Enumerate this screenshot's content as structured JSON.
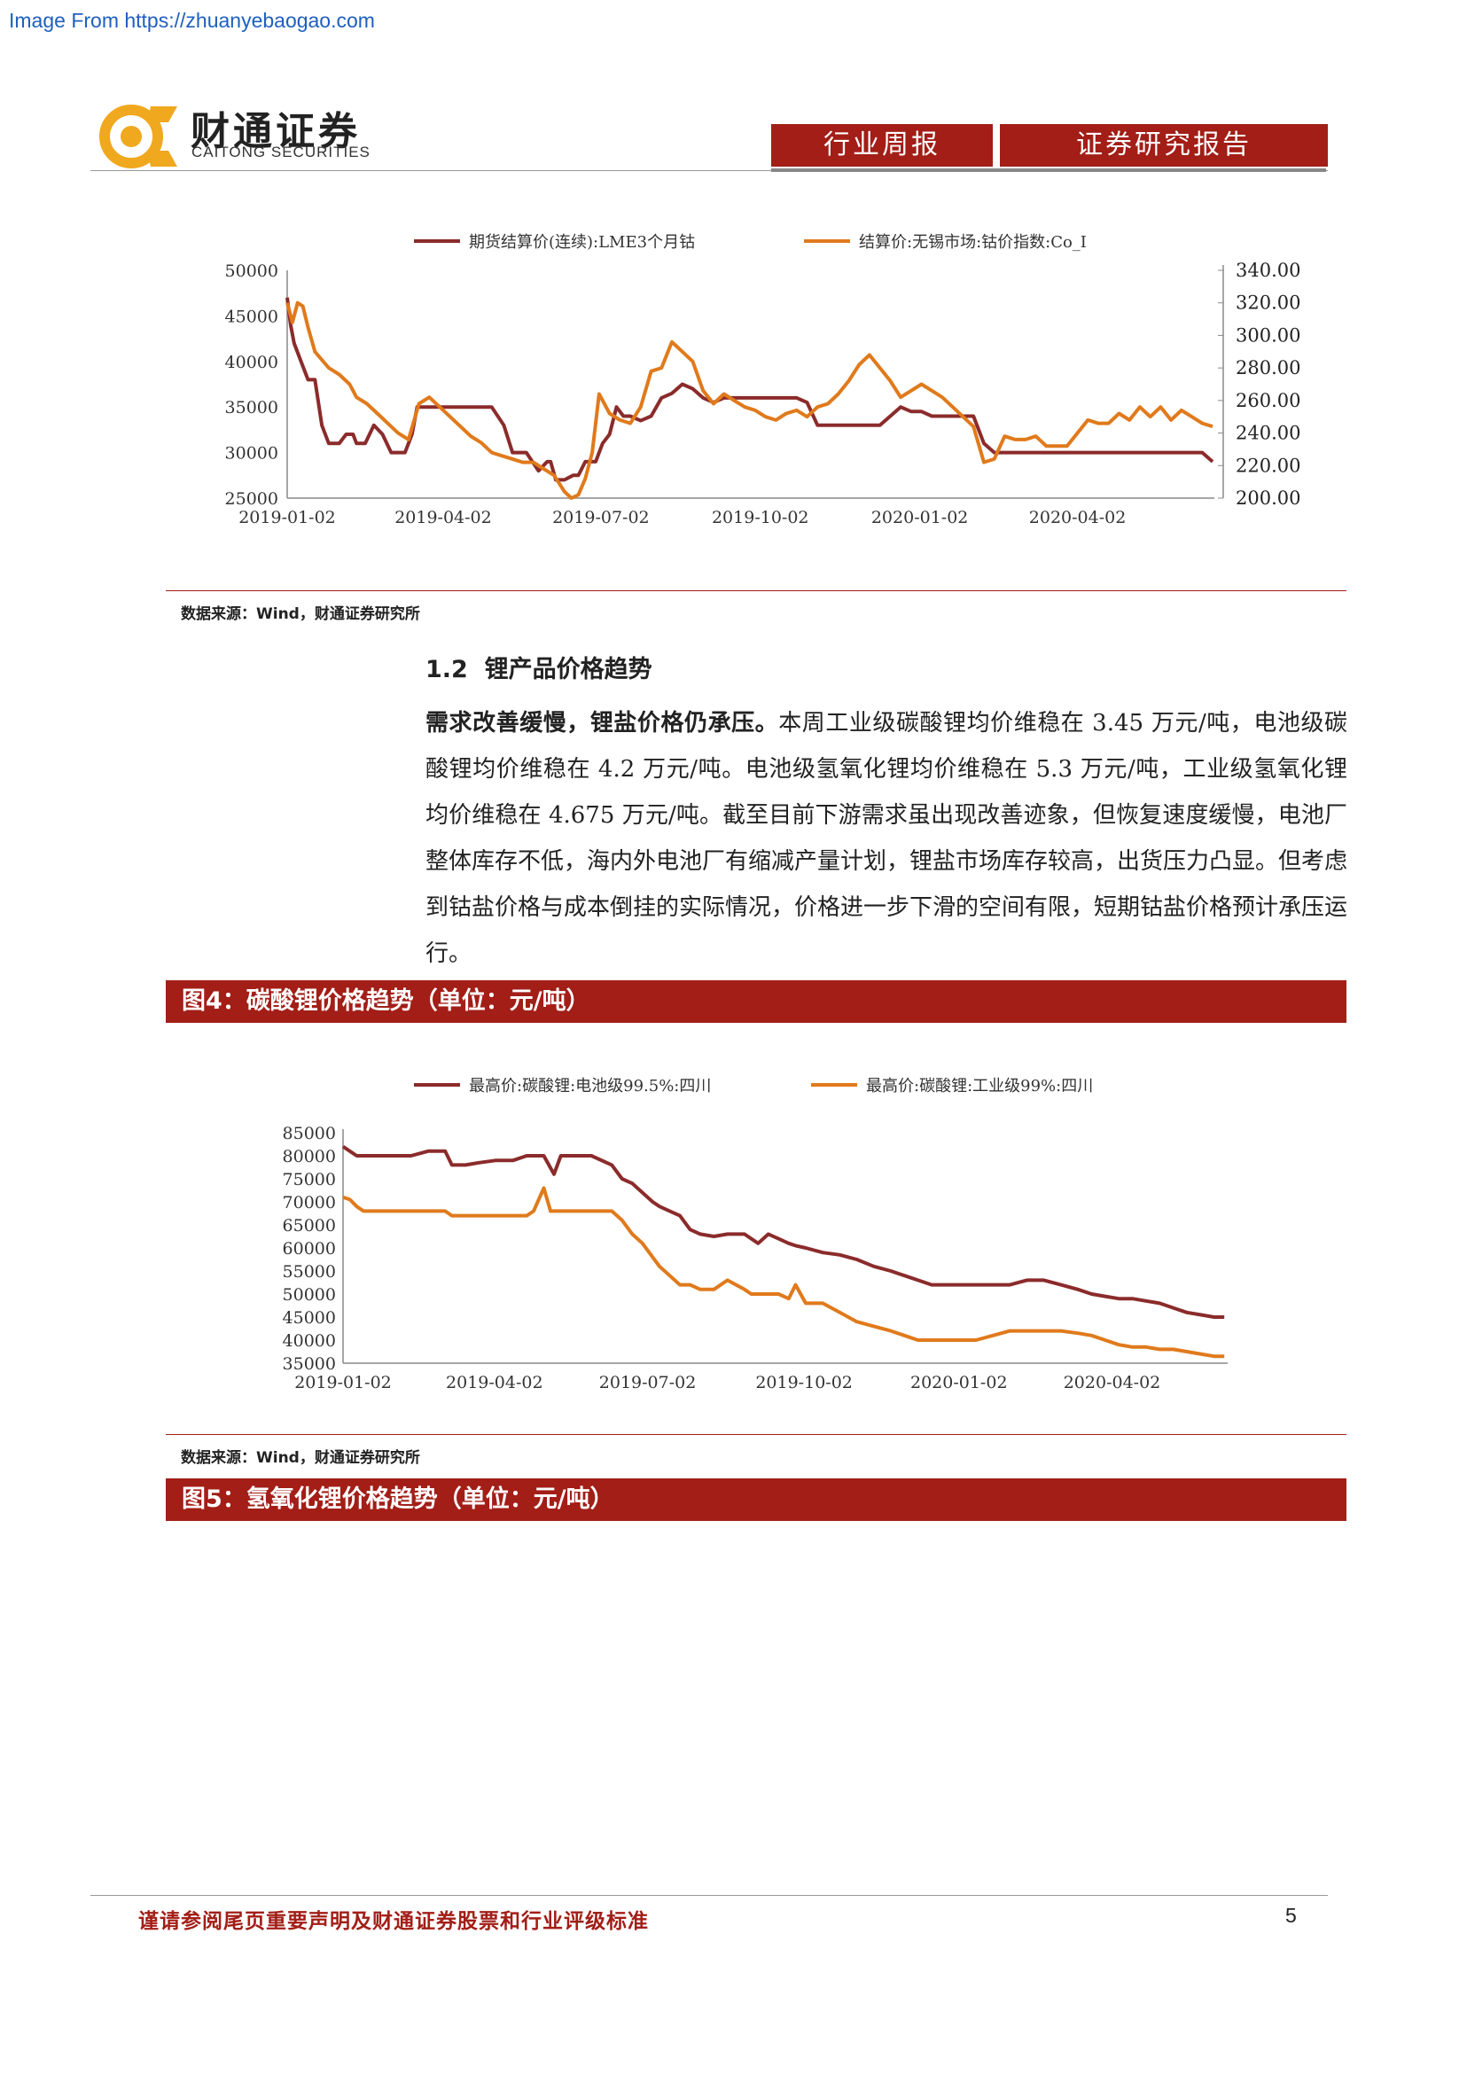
{
  "source_link": "Image From https://zhuanyebaogao.com",
  "header": {
    "brand_cn": "财通证券",
    "brand_en": "CAITONG SECURITIES",
    "tag_left": "行业周报",
    "tag_right": "证券研究报告"
  },
  "chart1_source": "数据来源：Wind，财通证券研究所",
  "section": {
    "number": "1.2",
    "title": "锂产品价格趋势",
    "lead_bold": "需求改善缓慢，锂盐价格仍承压。",
    "body": "本周工业级碳酸锂均价维稳在 3.45 万元/吨，电池级碳酸锂均价维稳在 4.2 万元/吨。电池级氢氧化锂均价维稳在 5.3 万元/吨，工业级氢氧化锂均价维稳在 4.675 万元/吨。截至目前下游需求虽出现改善迹象，但恢复速度缓慢，电池厂整体库存不低，海内外电池厂有缩减产量计划，锂盐市场库存较高，出货压力凸显。但考虑到钴盐价格与成本倒挂的实际情况，价格进一步下滑的空间有限，短期钴盐价格预计承压运行。"
  },
  "figure4_title": "图4：碳酸锂价格趋势（单位：元/吨）",
  "chart2_source": "数据来源：Wind，财通证券研究所",
  "figure5_title": "图5：氢氧化锂价格趋势（单位：元/吨）",
  "footer": {
    "disclaimer": "谨请参阅尾页重要声明及财通证券股票和行业评级标准",
    "page": "5"
  },
  "chart_data": [
    {
      "type": "line",
      "x_ticks": [
        "2019-01-02",
        "2019-04-02",
        "2019-07-02",
        "2019-10-02",
        "2020-01-02",
        "2020-04-02"
      ],
      "y_left_ticks": [
        "50000",
        "45000",
        "40000",
        "35000",
        "30000",
        "25000"
      ],
      "y_right_ticks": [
        "340.00",
        "320.00",
        "300.00",
        "280.00",
        "260.00",
        "240.00",
        "220.00",
        "200.00"
      ],
      "ylim_left": [
        25000,
        50000
      ],
      "ylim_right": [
        200,
        340
      ],
      "colors": {
        "series1": "#8b2b2b",
        "series2": "#e07a1c"
      },
      "series": [
        {
          "name": "期货结算价(连续):LME3个月钴",
          "axis": "left",
          "color": "#8b2b2b",
          "x": [
            0,
            2,
            4,
            6,
            8,
            12,
            16,
            20,
            24,
            28,
            30,
            34,
            38,
            40,
            45,
            50,
            55,
            60,
            65,
            68,
            72,
            75,
            80,
            88,
            95,
            100,
            105,
            108,
            112,
            118,
            125,
            130,
            134,
            138,
            145,
            150,
            152,
            155,
            160,
            165,
            168,
            172,
            178,
            182,
            186,
            190,
            194,
            198,
            204,
            210,
            216,
            222,
            228,
            234,
            240,
            246,
            252,
            258,
            264,
            270,
            276,
            282,
            288,
            294,
            300,
            306,
            312,
            318,
            324,
            330,
            336,
            342,
            348,
            354,
            360,
            366,
            372,
            378,
            384,
            390,
            396,
            402,
            408,
            414,
            420,
            426,
            432,
            438,
            444,
            450,
            456,
            462,
            468,
            474,
            480,
            486,
            492,
            498,
            504,
            510,
            516,
            522,
            528,
            534
          ],
          "y": [
            47000,
            44000,
            42000,
            41000,
            40000,
            38000,
            38000,
            33000,
            31000,
            31000,
            31000,
            32000,
            32000,
            31000,
            31000,
            33000,
            32000,
            30000,
            30000,
            30000,
            32000,
            35000,
            35000,
            35000,
            35000,
            35000,
            35000,
            35000,
            35000,
            35000,
            33000,
            30000,
            30000,
            30000,
            28000,
            29000,
            29000,
            27000,
            27000,
            27500,
            27500,
            29000,
            29000,
            31000,
            32000,
            35000,
            34000,
            34000,
            33500,
            34000,
            36000,
            36500,
            37500,
            37000,
            36000,
            35500,
            36000,
            36000,
            36000,
            36000,
            36000,
            36000,
            36000,
            36000,
            35500,
            33000,
            33000,
            33000,
            33000,
            33000,
            33000,
            33000,
            34000,
            35000,
            34500,
            34500,
            34000,
            34000,
            34000,
            34000,
            34000,
            31000,
            30000,
            30000,
            30000,
            30000,
            30000,
            30000,
            30000,
            30000,
            30000,
            30000,
            30000,
            30000,
            30000,
            30000,
            30000,
            30000,
            30000,
            30000,
            30000,
            30000,
            30000,
            29000
          ]
        },
        {
          "name": "结算价:无锡市场:钴价指数:Co_I",
          "axis": "right",
          "color": "#e07a1c",
          "x": [
            0,
            3,
            6,
            9,
            12,
            16,
            20,
            24,
            30,
            36,
            40,
            46,
            52,
            58,
            64,
            70,
            76,
            82,
            88,
            94,
            100,
            106,
            112,
            118,
            124,
            130,
            136,
            142,
            148,
            154,
            160,
            164,
            168,
            172,
            176,
            180,
            186,
            192,
            198,
            204,
            210,
            216,
            222,
            228,
            234,
            240,
            246,
            252,
            258,
            264,
            270,
            276,
            282,
            288,
            294,
            300,
            306,
            312,
            318,
            324,
            330,
            336,
            342,
            348,
            354,
            360,
            366,
            372,
            378,
            384,
            390,
            396,
            402,
            408,
            414,
            420,
            426,
            432,
            438,
            444,
            450,
            456,
            462,
            468,
            474,
            480,
            486,
            492,
            498,
            504,
            510,
            516,
            522,
            528,
            534
          ],
          "y": [
            320,
            308,
            320,
            318,
            305,
            290,
            285,
            280,
            276,
            270,
            262,
            258,
            252,
            246,
            240,
            236,
            258,
            262,
            256,
            250,
            244,
            238,
            234,
            228,
            226,
            224,
            222,
            222,
            218,
            214,
            204,
            200,
            202,
            212,
            228,
            264,
            252,
            248,
            246,
            256,
            278,
            280,
            296,
            290,
            284,
            266,
            258,
            264,
            260,
            256,
            254,
            250,
            248,
            252,
            254,
            250,
            256,
            258,
            264,
            272,
            282,
            288,
            280,
            272,
            262,
            266,
            270,
            266,
            262,
            256,
            250,
            244,
            222,
            224,
            238,
            236,
            236,
            238,
            232,
            232,
            232,
            240,
            248,
            246,
            246,
            252,
            248,
            256,
            250,
            256,
            248,
            254,
            250,
            246,
            244
          ]
        }
      ]
    },
    {
      "type": "line",
      "x_ticks": [
        "2019-01-02",
        "2019-04-02",
        "2019-07-02",
        "2019-10-02",
        "2020-01-02",
        "2020-04-02"
      ],
      "y_ticks": [
        "85000",
        "80000",
        "75000",
        "70000",
        "65000",
        "60000",
        "55000",
        "50000",
        "45000",
        "40000",
        "35000"
      ],
      "ylim": [
        35000,
        85000
      ],
      "colors": {
        "series1": "#8b2b2b",
        "series2": "#e07a1c"
      },
      "series": [
        {
          "name": "最高价:碳酸锂:电池级99.5%:四川",
          "color": "#8b2b2b",
          "x": [
            0,
            4,
            8,
            12,
            40,
            50,
            60,
            64,
            72,
            80,
            90,
            100,
            108,
            118,
            124,
            128,
            130,
            134,
            146,
            158,
            164,
            170,
            176,
            182,
            186,
            192,
            198,
            204,
            210,
            218,
            226,
            236,
            244,
            250,
            256,
            262,
            266,
            272,
            282,
            292,
            302,
            312,
            322,
            330,
            338,
            346,
            354,
            362,
            372,
            382,
            392,
            402,
            412,
            422,
            432,
            440,
            448,
            456,
            464,
            472,
            480,
            488,
            496,
            504,
            512,
            518
          ],
          "y": [
            82000,
            81000,
            80000,
            80000,
            80000,
            81000,
            81000,
            78000,
            78000,
            78500,
            79000,
            79000,
            80000,
            80000,
            76000,
            80000,
            80000,
            80000,
            80000,
            78000,
            75000,
            74000,
            72000,
            70000,
            69000,
            68000,
            67000,
            64000,
            63000,
            62500,
            63000,
            63000,
            61000,
            63000,
            62000,
            61000,
            60500,
            60000,
            59000,
            58500,
            57500,
            56000,
            55000,
            54000,
            53000,
            52000,
            52000,
            52000,
            52000,
            52000,
            52000,
            53000,
            53000,
            52000,
            51000,
            50000,
            49500,
            49000,
            49000,
            48500,
            48000,
            47000,
            46000,
            45500,
            45000,
            45000
          ]
        },
        {
          "name": "最高价:碳酸锂:工业级99%:四川",
          "color": "#e07a1c",
          "x": [
            0,
            4,
            8,
            12,
            40,
            50,
            60,
            64,
            72,
            80,
            90,
            100,
            108,
            112,
            118,
            122,
            124,
            128,
            134,
            146,
            158,
            164,
            170,
            176,
            182,
            186,
            192,
            198,
            204,
            210,
            218,
            226,
            236,
            240,
            244,
            250,
            256,
            262,
            266,
            272,
            282,
            292,
            302,
            312,
            322,
            330,
            338,
            346,
            354,
            362,
            372,
            382,
            392,
            402,
            412,
            422,
            432,
            440,
            448,
            456,
            464,
            472,
            480,
            488,
            496,
            504,
            512,
            518
          ],
          "y": [
            71000,
            70500,
            69000,
            68000,
            68000,
            68000,
            68000,
            67000,
            67000,
            67000,
            67000,
            67000,
            67000,
            68000,
            73000,
            68000,
            68000,
            68000,
            68000,
            68000,
            68000,
            66000,
            63000,
            61000,
            58000,
            56000,
            54000,
            52000,
            52000,
            51000,
            51000,
            53000,
            51000,
            50000,
            50000,
            50000,
            50000,
            49000,
            52000,
            48000,
            48000,
            46000,
            44000,
            43000,
            42000,
            41000,
            40000,
            40000,
            40000,
            40000,
            40000,
            41000,
            42000,
            42000,
            42000,
            42000,
            41500,
            41000,
            40000,
            39000,
            38500,
            38500,
            38000,
            38000,
            37500,
            37000,
            36500,
            36500
          ]
        }
      ]
    }
  ]
}
